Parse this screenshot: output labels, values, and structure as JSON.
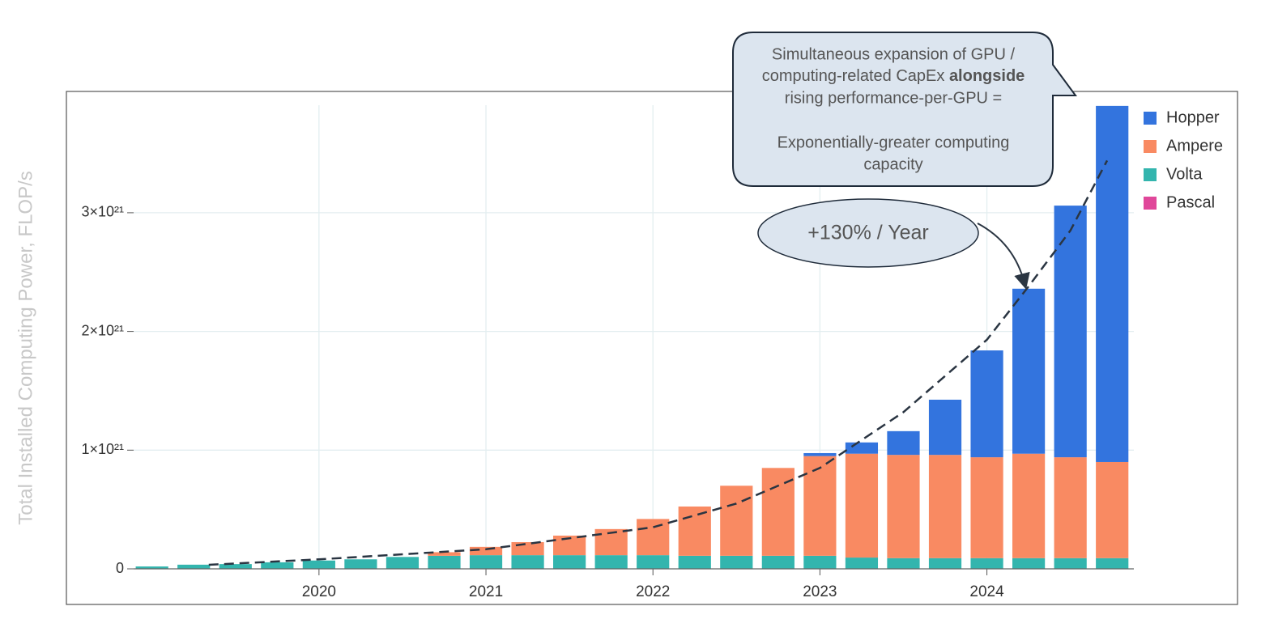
{
  "chart_data": {
    "type": "stacked-bar",
    "ylabel": "Total Installed Computing Power, FLOP/s",
    "x": [
      2019.0,
      2019.25,
      2019.5,
      2019.75,
      2020.0,
      2020.25,
      2020.5,
      2020.75,
      2021.0,
      2021.25,
      2021.5,
      2021.75,
      2022.0,
      2022.25,
      2022.5,
      2022.75,
      2023.0,
      2023.25,
      2023.5,
      2023.75,
      2024.0,
      2024.25,
      2024.5,
      2024.75
    ],
    "series": [
      {
        "name": "Pascal",
        "color": "#e0479a",
        "values": [
          0,
          0,
          0,
          0,
          0,
          0,
          0,
          0,
          0,
          0,
          0,
          0,
          0,
          0,
          0,
          0,
          0,
          0,
          0,
          0,
          0,
          0,
          0,
          0
        ]
      },
      {
        "name": "Volta",
        "color": "#33b5ae",
        "values": [
          2e+19,
          3.5e+19,
          4e+19,
          5.5e+19,
          7e+19,
          8e+19,
          1e+20,
          1.1e+20,
          1.15e+20,
          1.15e+20,
          1.15e+20,
          1.15e+20,
          1.15e+20,
          1.1e+20,
          1.1e+20,
          1.1e+20,
          1.1e+20,
          9.5e+19,
          9e+19,
          9e+19,
          9e+19,
          9e+19,
          9e+19,
          9e+19
        ]
      },
      {
        "name": "Ampere",
        "color": "#f98a62",
        "values": [
          0,
          0,
          0,
          0,
          0,
          0,
          0,
          3e+19,
          7e+19,
          1.1e+20,
          1.65e+20,
          2.2e+20,
          3.05e+20,
          4.15e+20,
          5.9e+20,
          7.4e+20,
          8.4e+20,
          8.75e+20,
          8.7e+20,
          8.7e+20,
          8.5e+20,
          8.8e+20,
          8.5e+20,
          8.1e+20
        ]
      },
      {
        "name": "Hopper",
        "color": "#3374de",
        "values": [
          0,
          0,
          0,
          0,
          0,
          0,
          0,
          0,
          0,
          0,
          0,
          0,
          0,
          0,
          0,
          0,
          2.5e+19,
          9.5e+19,
          2e+20,
          4.65e+20,
          9e+20,
          1.39e+21,
          2.12e+21,
          3e+21
        ]
      }
    ],
    "trend": {
      "x": [
        2019.34,
        2020.0,
        2021.0,
        2022.0,
        2022.5,
        2023.0,
        2023.5,
        2024.0,
        2024.25,
        2024.5,
        2024.72
      ],
      "values": [
        3.4e+19,
        8e+19,
        1.65e+20,
        3.5e+20,
        5.5e+20,
        8.5e+20,
        1.32e+21,
        1.93e+21,
        2.38e+21,
        2.85e+21,
        3.44e+21
      ]
    },
    "xlim": [
      2018.89,
      2024.88
    ],
    "xticks": [
      2020,
      2021,
      2022,
      2023,
      2024
    ],
    "ylim": [
      0,
      3.906e+21
    ],
    "yticks": [
      0,
      {
        "value": 1e+21,
        "label": "1×10²¹"
      },
      {
        "value": 2e+21,
        "label": "2×10²¹"
      },
      {
        "value": 3e+21,
        "label": "3×10²¹"
      }
    ],
    "grid": true,
    "legend": "top-right",
    "annotations": {
      "callout": [
        "Simultaneous expansion of GPU /",
        "computing-related CapEx ",
        "alongside",
        "rising performance-per-GPU =",
        "Exponentially-greater computing",
        "capacity"
      ],
      "growth": "+130% / Year"
    }
  }
}
